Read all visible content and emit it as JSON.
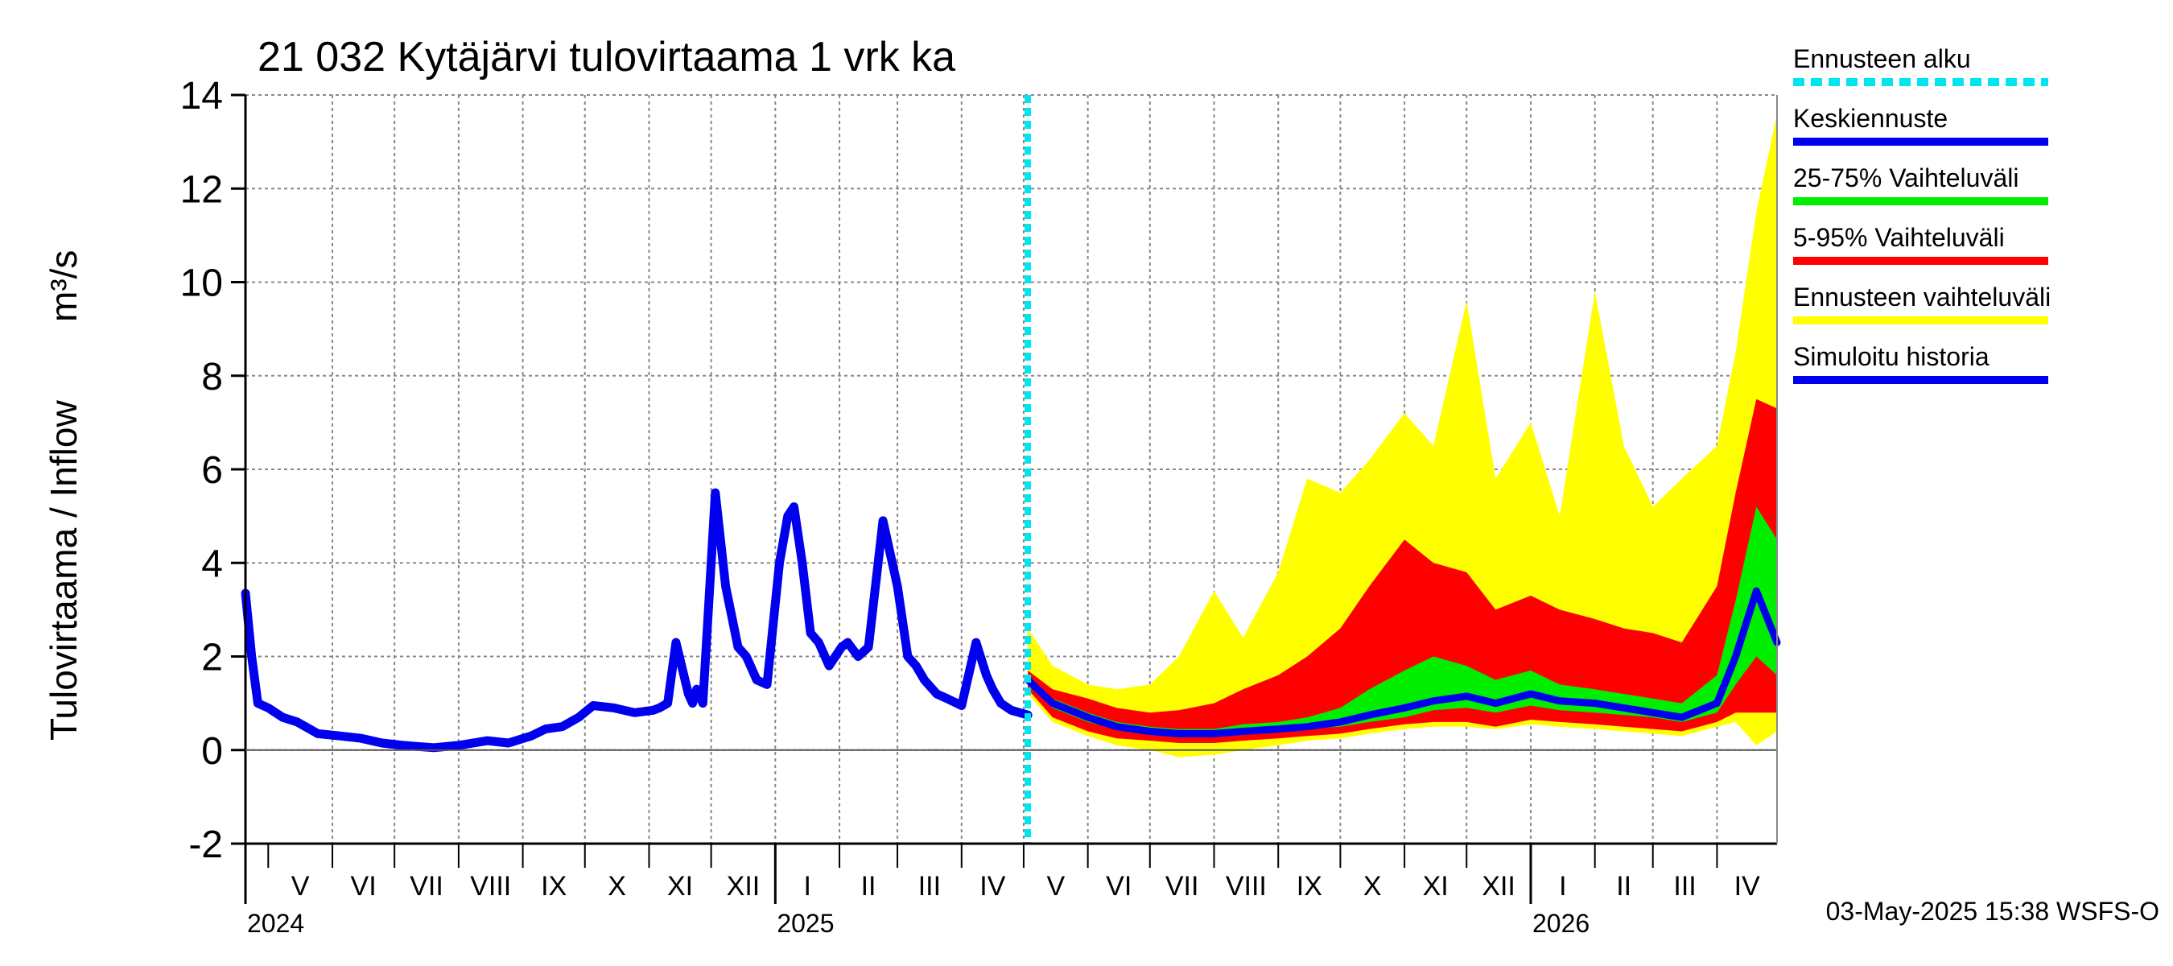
{
  "chart_data": {
    "type": "area",
    "title": "21 032 Kytäjärvi tulovirtaama 1 vrk ka",
    "ylabel": "Tulovirtaama / Inflow",
    "yunit": "m³/s",
    "ylim": [
      -2,
      14
    ],
    "yticks": [
      -2,
      0,
      2,
      4,
      6,
      8,
      10,
      12,
      14
    ],
    "xlim": [
      "2024-04-20",
      "2026-04-30"
    ],
    "grid": true,
    "legend_position": "right",
    "months": [
      {
        "label": "V",
        "start": "2024-05-01"
      },
      {
        "label": "VI",
        "start": "2024-06-01"
      },
      {
        "label": "VII",
        "start": "2024-07-01"
      },
      {
        "label": "VIII",
        "start": "2024-08-01"
      },
      {
        "label": "IX",
        "start": "2024-09-01"
      },
      {
        "label": "X",
        "start": "2024-10-01"
      },
      {
        "label": "XI",
        "start": "2024-11-01"
      },
      {
        "label": "XII",
        "start": "2024-12-01"
      },
      {
        "label": "I",
        "start": "2025-01-01"
      },
      {
        "label": "II",
        "start": "2025-02-01"
      },
      {
        "label": "III",
        "start": "2025-03-01"
      },
      {
        "label": "IV",
        "start": "2025-04-01"
      },
      {
        "label": "V",
        "start": "2025-05-01"
      },
      {
        "label": "VI",
        "start": "2025-06-01"
      },
      {
        "label": "VII",
        "start": "2025-07-01"
      },
      {
        "label": "VIII",
        "start": "2025-08-01"
      },
      {
        "label": "IX",
        "start": "2025-09-01"
      },
      {
        "label": "X",
        "start": "2025-10-01"
      },
      {
        "label": "XI",
        "start": "2025-11-01"
      },
      {
        "label": "XII",
        "start": "2025-12-01"
      },
      {
        "label": "I",
        "start": "2026-01-01"
      },
      {
        "label": "II",
        "start": "2026-02-01"
      },
      {
        "label": "III",
        "start": "2026-03-01"
      },
      {
        "label": "IV",
        "start": "2026-04-01"
      }
    ],
    "years": [
      {
        "label": "2024",
        "at": "2024-04-20"
      },
      {
        "label": "2025",
        "at": "2025-01-01"
      },
      {
        "label": "2026",
        "at": "2026-01-01"
      }
    ],
    "forecast_start": "2025-05-03",
    "colors": {
      "forecast_start": "#00e5ee",
      "mean": "#0000ee",
      "p25_75": "#00ee00",
      "p5_95": "#ff0000",
      "range": "#ffff00",
      "history": "#0000ee"
    },
    "legend": [
      {
        "label": "Ennusteen alku",
        "key": "forecast_start",
        "style": "dashed"
      },
      {
        "label": "Keskiennuste",
        "key": "mean",
        "style": "line"
      },
      {
        "label": "25-75% Vaihteluväli",
        "key": "p25_75",
        "style": "line"
      },
      {
        "label": "5-95% Vaihteluväli",
        "key": "p5_95",
        "style": "line"
      },
      {
        "label": "Ennusteen vaihteluväli",
        "key": "range",
        "style": "line"
      },
      {
        "label": "Simuloitu historia",
        "key": "history",
        "style": "line"
      }
    ],
    "history": {
      "x": [
        "2024-04-20",
        "2024-04-23",
        "2024-04-26",
        "2024-05-01",
        "2024-05-08",
        "2024-05-15",
        "2024-05-25",
        "2024-06-05",
        "2024-06-15",
        "2024-06-25",
        "2024-07-05",
        "2024-07-20",
        "2024-08-01",
        "2024-08-15",
        "2024-08-25",
        "2024-09-05",
        "2024-09-12",
        "2024-09-20",
        "2024-09-28",
        "2024-10-05",
        "2024-10-15",
        "2024-10-25",
        "2024-11-03",
        "2024-11-06",
        "2024-11-10",
        "2024-11-14",
        "2024-11-20",
        "2024-11-22",
        "2024-11-24",
        "2024-11-27",
        "2024-12-03",
        "2024-12-08",
        "2024-12-14",
        "2024-12-18",
        "2024-12-20",
        "2024-12-23",
        "2024-12-28",
        "2025-01-03",
        "2025-01-07",
        "2025-01-10",
        "2025-01-14",
        "2025-01-18",
        "2025-01-22",
        "2025-01-27",
        "2025-02-02",
        "2025-02-05",
        "2025-02-10",
        "2025-02-15",
        "2025-02-22",
        "2025-03-01",
        "2025-03-06",
        "2025-03-10",
        "2025-03-14",
        "2025-03-20",
        "2025-03-25",
        "2025-04-01",
        "2025-04-08",
        "2025-04-13",
        "2025-04-16",
        "2025-04-20",
        "2025-04-25",
        "2025-05-03"
      ],
      "y": [
        3.35,
        2.0,
        1.0,
        0.9,
        0.7,
        0.6,
        0.35,
        0.3,
        0.25,
        0.15,
        0.1,
        0.05,
        0.1,
        0.2,
        0.15,
        0.3,
        0.45,
        0.5,
        0.7,
        0.95,
        0.9,
        0.8,
        0.85,
        0.9,
        1.0,
        2.3,
        1.2,
        1.0,
        1.3,
        1.0,
        5.5,
        3.5,
        2.2,
        2.0,
        1.8,
        1.5,
        1.4,
        4.0,
        5.0,
        5.2,
        4.0,
        2.5,
        2.3,
        1.8,
        2.2,
        2.3,
        2.0,
        2.2,
        4.9,
        3.5,
        2.0,
        1.8,
        1.5,
        1.2,
        1.1,
        0.95,
        2.3,
        1.6,
        1.3,
        1.0,
        0.85,
        0.75
      ]
    },
    "forecast": {
      "x": [
        "2025-05-03",
        "2025-05-15",
        "2025-06-01",
        "2025-06-15",
        "2025-07-01",
        "2025-07-15",
        "2025-08-01",
        "2025-08-15",
        "2025-09-01",
        "2025-09-15",
        "2025-10-01",
        "2025-10-15",
        "2025-11-01",
        "2025-11-15",
        "2025-12-01",
        "2025-12-15",
        "2026-01-01",
        "2026-01-15",
        "2026-02-01",
        "2026-02-15",
        "2026-03-01",
        "2026-03-15",
        "2026-04-01",
        "2026-04-10",
        "2026-04-20",
        "2026-04-30"
      ],
      "mean": [
        1.5,
        1.0,
        0.7,
        0.5,
        0.4,
        0.35,
        0.35,
        0.4,
        0.45,
        0.5,
        0.6,
        0.75,
        0.9,
        1.05,
        1.15,
        1.0,
        1.2,
        1.05,
        1.0,
        0.9,
        0.8,
        0.7,
        1.0,
        2.0,
        3.4,
        2.3
      ],
      "p25_low": [
        1.4,
        0.9,
        0.6,
        0.45,
        0.35,
        0.3,
        0.3,
        0.35,
        0.4,
        0.45,
        0.5,
        0.6,
        0.7,
        0.85,
        0.9,
        0.8,
        0.95,
        0.85,
        0.8,
        0.75,
        0.7,
        0.6,
        0.8,
        1.4,
        2.0,
        1.6
      ],
      "p75_high": [
        1.6,
        1.1,
        0.8,
        0.6,
        0.5,
        0.45,
        0.45,
        0.55,
        0.6,
        0.7,
        0.9,
        1.3,
        1.7,
        2.0,
        1.8,
        1.5,
        1.7,
        1.4,
        1.3,
        1.2,
        1.1,
        1.0,
        1.6,
        3.2,
        5.2,
        4.5
      ],
      "p5_low": [
        1.3,
        0.7,
        0.4,
        0.25,
        0.2,
        0.15,
        0.15,
        0.2,
        0.25,
        0.3,
        0.35,
        0.45,
        0.55,
        0.6,
        0.6,
        0.5,
        0.65,
        0.6,
        0.55,
        0.5,
        0.45,
        0.4,
        0.6,
        0.8,
        0.8,
        0.8
      ],
      "p95_high": [
        1.7,
        1.3,
        1.1,
        0.9,
        0.8,
        0.85,
        1.0,
        1.3,
        1.6,
        2.0,
        2.6,
        3.5,
        4.5,
        4.0,
        3.8,
        3.0,
        3.3,
        3.0,
        2.8,
        2.6,
        2.5,
        2.3,
        3.5,
        5.5,
        7.5,
        7.3
      ],
      "range_low": [
        1.2,
        0.6,
        0.3,
        0.1,
        0.0,
        -0.15,
        -0.1,
        0.0,
        0.1,
        0.2,
        0.25,
        0.35,
        0.45,
        0.5,
        0.5,
        0.45,
        0.55,
        0.5,
        0.45,
        0.4,
        0.35,
        0.3,
        0.5,
        0.6,
        0.1,
        0.4
      ],
      "range_high": [
        2.6,
        1.8,
        1.4,
        1.3,
        1.4,
        2.0,
        3.4,
        2.4,
        3.8,
        5.8,
        5.5,
        6.2,
        7.2,
        6.5,
        9.6,
        5.8,
        7.0,
        5.0,
        9.8,
        6.5,
        5.2,
        5.8,
        6.5,
        8.5,
        11.5,
        13.6
      ]
    }
  },
  "footer_text": "03-May-2025 15:38 WSFS-O"
}
